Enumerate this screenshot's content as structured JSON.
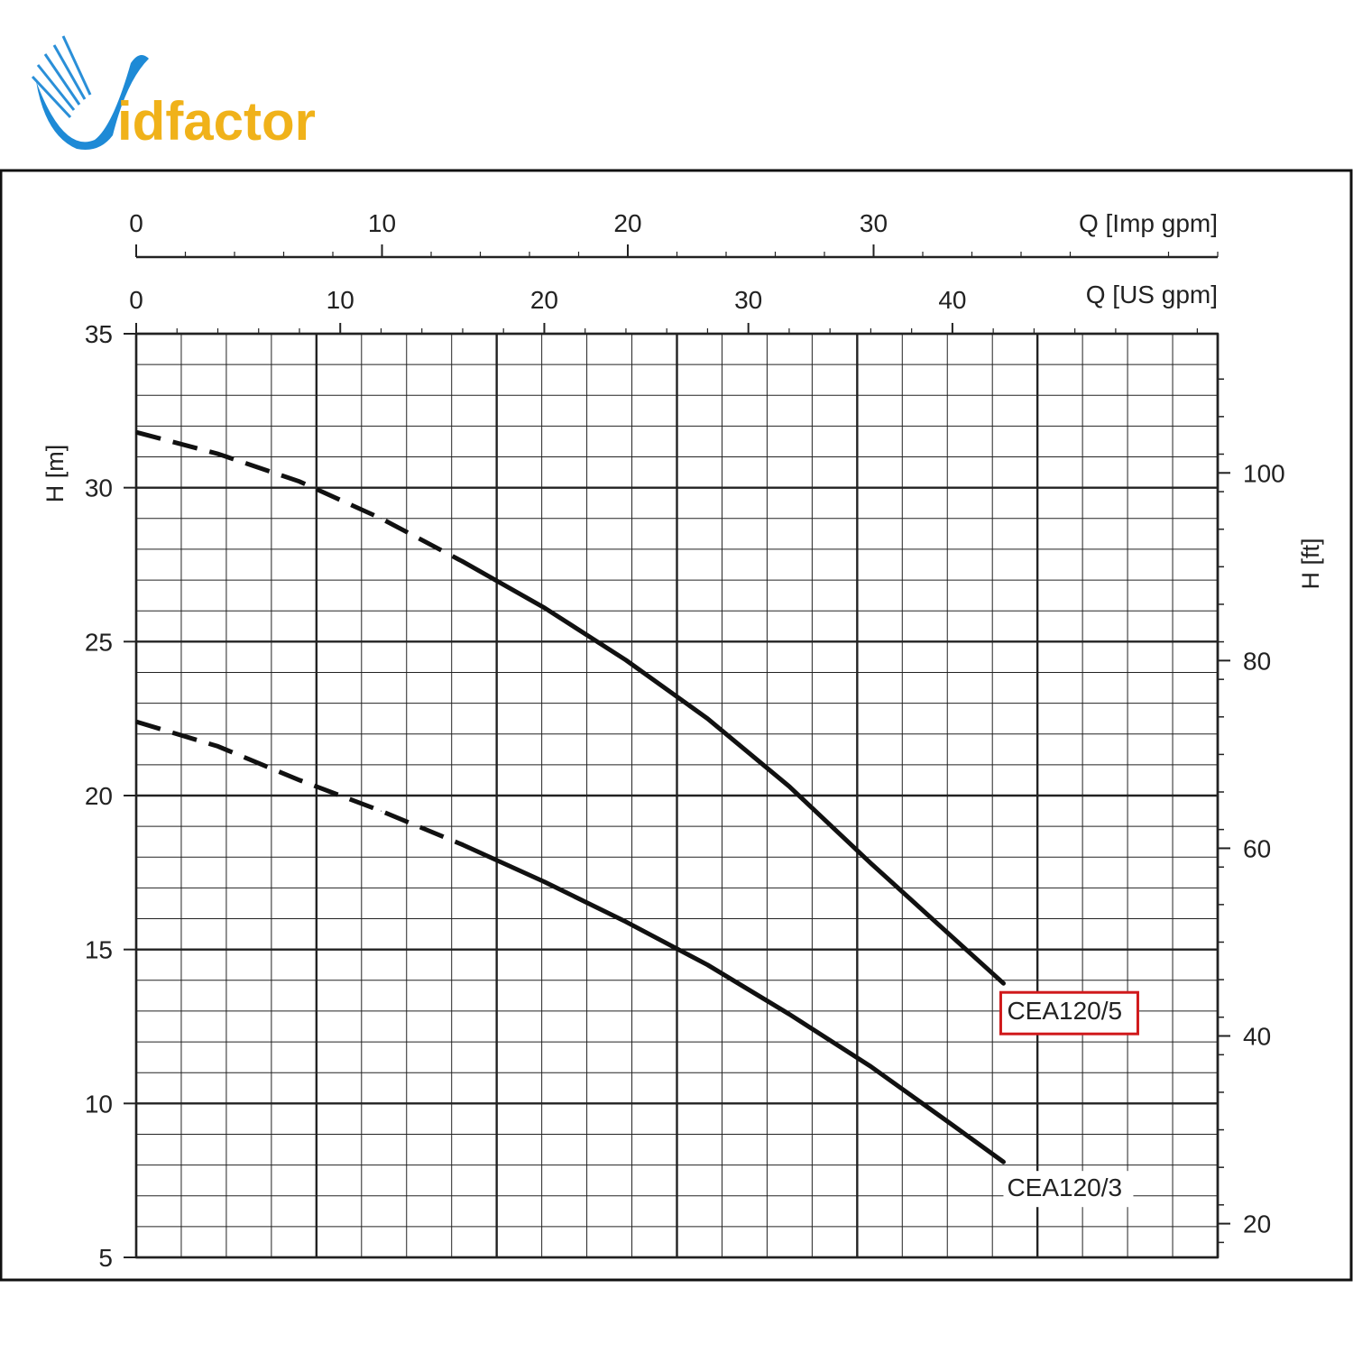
{
  "logo": {
    "text": "vidfactor",
    "colors": {
      "v": "#1e8ad6",
      "idfactor": "#f0b21a"
    }
  },
  "chart_data": {
    "type": "line",
    "grid": true,
    "x_axis_us": {
      "label": "Q [US gpm]",
      "ticks": [
        0,
        10,
        20,
        30,
        40
      ],
      "range": [
        0,
        53
      ]
    },
    "x_axis_imp": {
      "label": "Q [Imp gpm]",
      "ticks": [
        0,
        10,
        20,
        30
      ],
      "range": [
        0,
        44
      ]
    },
    "y_axis_m": {
      "label": "H [m]",
      "ticks": [
        5,
        10,
        15,
        20,
        25,
        30,
        35
      ],
      "range": [
        5,
        35
      ]
    },
    "y_axis_ft": {
      "label": "H [ft]",
      "ticks": [
        20,
        40,
        60,
        80,
        100
      ]
    },
    "series": [
      {
        "name": "CEA120/5",
        "highlighted": true,
        "dashed_until_x": 16,
        "x": [
          0,
          4,
          8,
          12,
          16,
          20,
          24,
          28,
          32,
          36,
          38.5,
          42.5
        ],
        "y": [
          31.8,
          31.1,
          30.2,
          29.0,
          27.6,
          26.1,
          24.4,
          22.5,
          20.3,
          17.8,
          16.3,
          13.9
        ]
      },
      {
        "name": "CEA120/3",
        "highlighted": false,
        "dashed_until_x": 16,
        "x": [
          0,
          4,
          8,
          12,
          16,
          20,
          24,
          28,
          32,
          36,
          40,
          42.5
        ],
        "y": [
          22.4,
          21.6,
          20.5,
          19.5,
          18.4,
          17.2,
          15.9,
          14.5,
          12.9,
          11.2,
          9.3,
          8.1
        ]
      }
    ]
  }
}
